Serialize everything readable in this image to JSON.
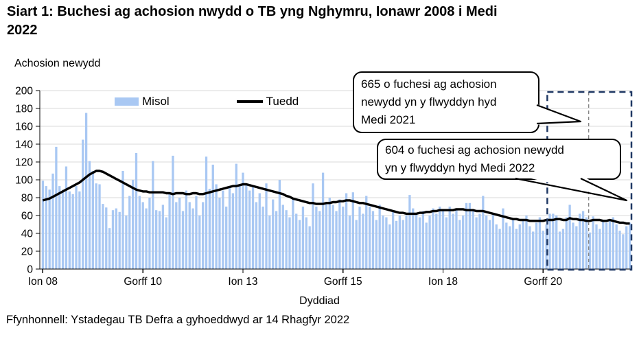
{
  "title": {
    "text": "Siart 1: Buchesi ag achosion nwydd o TB yng Nghymru, Ionawr 2008 i Medi 2022",
    "lines": [
      "Siart 1: Buchesi ag achosion nwydd o TB yng Nghymru, Ionawr 2008 i Medi",
      "2022"
    ]
  },
  "legend": [
    {
      "label": "Misol",
      "type": "bar",
      "color": "#a9c8f3"
    },
    {
      "label": "Tuedd",
      "type": "line",
      "color": "#000000"
    }
  ],
  "annotations": [
    {
      "value": 665,
      "text": "665 o fuchesi ag achosion newydd yn y flwyddyn hyd Medi 2021",
      "lines": [
        "665 o fuchesi ag achosion",
        "newydd yn y flwyddyn hyd",
        "Medi 2021"
      ]
    },
    {
      "value": 604,
      "text": "604 o fuchesi ag achosion newydd yn y flwyddyn hyd Medi 2022",
      "lines": [
        "604 o fuchesi ag achosion newydd",
        "yn y flwyddyn hyd Medi 2022"
      ]
    }
  ],
  "source": "Ffynhonnell: Ystadegau TB Defra a gyhoeddwyd ar 14 Rhagfyr 2022",
  "chart_data": {
    "type": "bar",
    "title": "Siart 1: Buchesi ag achosion nwydd o TB yng Nghymru, Ionawr 2008 i Medi 2022",
    "xlabel": "Dyddiad",
    "ylabel": "Achosion newydd",
    "ylim": [
      0,
      200
    ],
    "y_tick_step": 20,
    "grid": true,
    "legend_position": "top-left-inside",
    "x_start": "Ionawr 2008",
    "x_end": "Medi 2022",
    "n_months": 177,
    "x_tick_labels": [
      {
        "label": "Ion 08",
        "month_index": 0
      },
      {
        "label": "Gorff 10",
        "month_index": 30
      },
      {
        "label": "Ion 13",
        "month_index": 60
      },
      {
        "label": "Gorff 15",
        "month_index": 90
      },
      {
        "label": "Ion 18",
        "month_index": 120
      },
      {
        "label": "Gorff 20",
        "month_index": 150
      }
    ],
    "series": [
      {
        "name": "Misol",
        "type": "bar",
        "color": "#a9c8f3",
        "values": [
          99,
          93,
          89,
          107,
          137,
          93,
          89,
          115,
          87,
          84,
          93,
          87,
          145,
          175,
          121,
          110,
          96,
          95,
          73,
          69,
          46,
          66,
          68,
          64,
          110,
          60,
          82,
          100,
          130,
          82,
          75,
          68,
          80,
          121,
          66,
          65,
          72,
          58,
          85,
          127,
          75,
          80,
          65,
          88,
          75,
          68,
          82,
          60,
          75,
          126,
          90,
          117,
          95,
          80,
          88,
          70,
          92,
          85,
          118,
          95,
          108,
          95,
          88,
          92,
          75,
          85,
          70,
          96,
          60,
          78,
          65,
          100,
          72,
          66,
          58,
          80,
          62,
          55,
          70,
          58,
          48,
          96,
          70,
          65,
          108,
          75,
          80,
          72,
          65,
          78,
          70,
          85,
          60,
          86,
          55,
          70,
          62,
          82,
          70,
          65,
          55,
          72,
          60,
          58,
          50,
          66,
          54,
          60,
          55,
          60,
          83,
          68,
          62,
          58,
          65,
          52,
          60,
          68,
          62,
          70,
          65,
          58,
          70,
          62,
          68,
          55,
          60,
          74,
          74,
          65,
          58,
          62,
          82,
          60,
          55,
          62,
          50,
          45,
          68,
          52,
          48,
          55,
          45,
          50,
          55,
          60,
          48,
          42,
          52,
          58,
          43,
          50,
          62,
          62,
          60,
          42,
          45,
          58,
          72,
          52,
          48,
          62,
          65,
          58,
          41,
          59,
          50,
          45,
          53,
          52,
          55,
          58,
          50,
          43,
          39,
          48,
          52
        ]
      },
      {
        "name": "Tuedd",
        "type": "line",
        "color": "#000000",
        "values": [
          77,
          78,
          79,
          81,
          83,
          85,
          87,
          89,
          91,
          93,
          95,
          97,
          100,
          103,
          106,
          108,
          110,
          110,
          109,
          107,
          105,
          103,
          101,
          99,
          97,
          95,
          93,
          91,
          89,
          88,
          87,
          87,
          86,
          86,
          86,
          86,
          86,
          85,
          85,
          84,
          85,
          85,
          85,
          84,
          84,
          85,
          85,
          84,
          84,
          85,
          86,
          87,
          88,
          89,
          90,
          91,
          92,
          93,
          93,
          94,
          95,
          95,
          94,
          93,
          92,
          91,
          90,
          89,
          88,
          87,
          86,
          85,
          84,
          82,
          81,
          79,
          78,
          77,
          76,
          75,
          74,
          74,
          73,
          73,
          73,
          74,
          74,
          75,
          75,
          76,
          76,
          77,
          77,
          76,
          75,
          74,
          74,
          73,
          72,
          71,
          70,
          69,
          68,
          67,
          66,
          65,
          64,
          63,
          63,
          62,
          62,
          62,
          62,
          63,
          63,
          64,
          64,
          65,
          65,
          66,
          66,
          66,
          66,
          66,
          67,
          67,
          67,
          66,
          66,
          66,
          65,
          65,
          65,
          64,
          63,
          62,
          61,
          60,
          59,
          58,
          57,
          56,
          56,
          55,
          55,
          55,
          54,
          54,
          54,
          54,
          54,
          55,
          55,
          55,
          56,
          56,
          55,
          55,
          57,
          56,
          56,
          55,
          55,
          54,
          54,
          55,
          55,
          55,
          54,
          54,
          55,
          54,
          53,
          52,
          52,
          51,
          51
        ]
      }
    ],
    "highlight": {
      "description": "Dashed box over the two 12-month periods to Medi 2021 (665) and Medi 2022 (604)",
      "start_month_index": 153,
      "divider_month_index": 165,
      "end_month_index": 177,
      "box_color": "#1f3864",
      "divider_color": "#808080"
    },
    "colors": {
      "bar": "#a9c8f3",
      "trend": "#000000",
      "grid": "#d9d9d9",
      "axis": "#000000"
    }
  }
}
